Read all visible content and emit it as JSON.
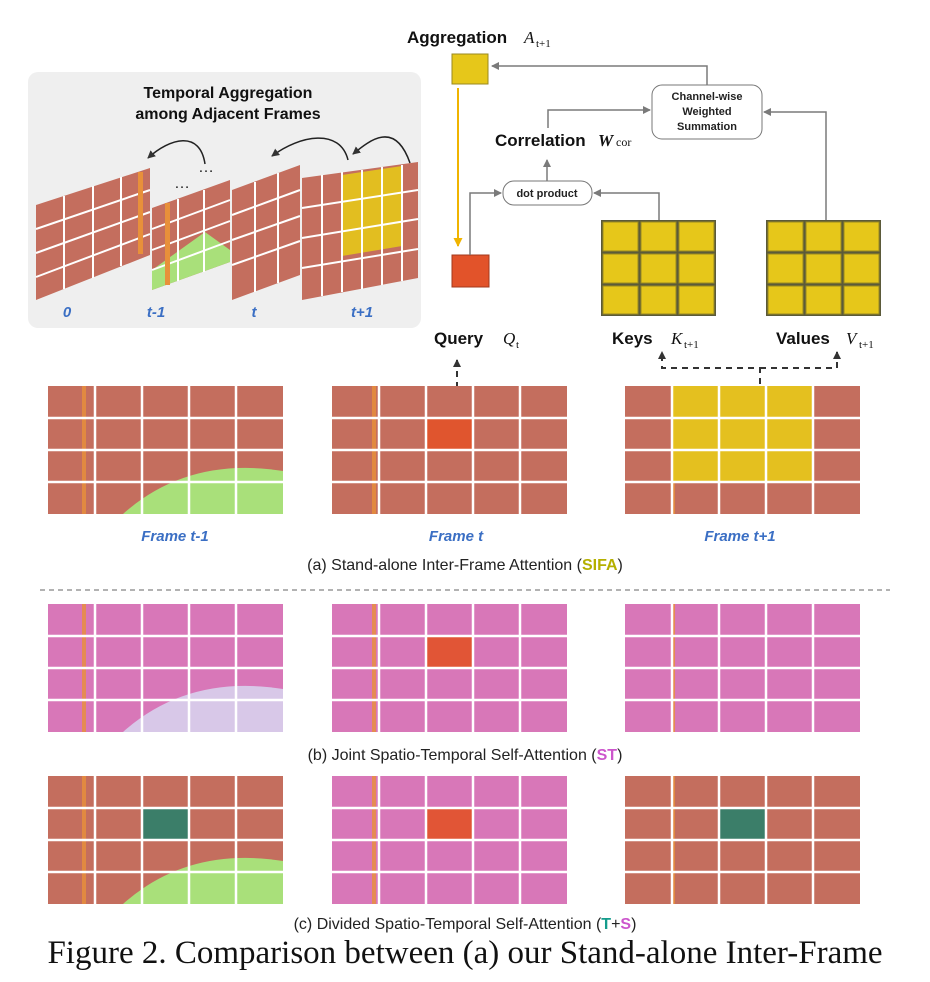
{
  "temporal_panel": {
    "title_line1": "Temporal Aggregation",
    "title_line2": "among Adjacent Frames",
    "ellipsis_1": "…",
    "ellipsis_2": "…",
    "labels": [
      "0",
      "t-1",
      "t",
      "t+1"
    ]
  },
  "diagram": {
    "aggregation_label": "Aggregation",
    "aggregation_sym": "A",
    "aggregation_sub": "t+1",
    "correlation_label": "Correlation",
    "correlation_sym": "W",
    "correlation_sub": "cor",
    "weighted_line1": "Channel-wise",
    "weighted_line2": "Weighted",
    "weighted_line3": "Summation",
    "dot_product_label": "dot product",
    "query_label": "Query",
    "query_sym": "Q",
    "query_sub": "t",
    "keys_label": "Keys",
    "keys_sym": "K",
    "keys_sub": "t+1",
    "values_label": "Values",
    "values_sym": "V",
    "values_sub": "t+1"
  },
  "frames": {
    "labels": [
      "Frame t-1",
      "Frame t",
      "Frame t+1"
    ]
  },
  "rows": {
    "a_prefix": "(a) Stand-alone Inter-Frame Attention (",
    "a_abbr": "SIFA",
    "a_suffix": ")",
    "b_prefix": "(b) Joint Spatio-Temporal Self-Attention (",
    "b_abbr": "ST",
    "b_suffix": ")",
    "c_prefix": "(c) Divided Spatio-Temporal Self-Attention (",
    "c_abbr_t": "T",
    "c_plus": "+",
    "c_abbr_s": "S",
    "c_suffix": ")"
  },
  "caption": "Figure 2.  Comparison between (a) our Stand-alone Inter-Frame",
  "colors": {
    "track": "#c46e5e",
    "magenta": "#d877b8",
    "yellow": "#e6c71a",
    "query_red": "#e2532a",
    "teal": "#2f7f6a",
    "green": "#a9e07a",
    "frame_label_blue": "#3b6fc4",
    "sifa_color": "#b5b000",
    "st_color": "#cc55cc",
    "t_color": "#149c8c",
    "s_color": "#cc55cc",
    "panel_bg": "#efefef",
    "arrow_gray": "#7a7a7a",
    "arrow_gold": "#f0b400"
  }
}
